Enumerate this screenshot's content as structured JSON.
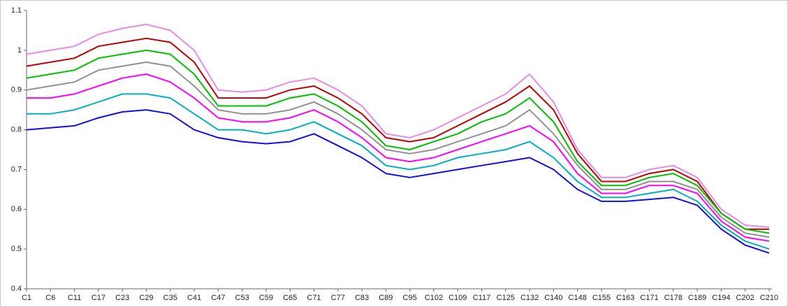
{
  "chart_data": {
    "type": "line",
    "categories": [
      "C1",
      "C6",
      "C11",
      "C17",
      "C23",
      "C29",
      "C35",
      "C41",
      "C47",
      "C53",
      "C59",
      "C65",
      "C71",
      "C77",
      "C83",
      "C89",
      "C95",
      "C102",
      "C109",
      "C117",
      "C125",
      "C132",
      "C140",
      "C148",
      "C155",
      "C163",
      "C171",
      "C178",
      "C189",
      "C194",
      "C202",
      "C210"
    ],
    "ylim": [
      0.4,
      1.1
    ],
    "yticks": [
      0.4,
      0.5,
      0.6,
      0.7,
      0.8,
      0.9,
      {
        "value": 1,
        "label": "1"
      },
      1.1
    ],
    "grid": false,
    "series": [
      {
        "color": "#e68ae6",
        "values": [
          0.99,
          1.0,
          1.01,
          1.04,
          1.055,
          1.065,
          1.05,
          1.0,
          0.9,
          0.895,
          0.9,
          0.92,
          0.93,
          0.9,
          0.86,
          0.79,
          0.78,
          0.8,
          0.83,
          0.86,
          0.89,
          0.94,
          0.87,
          0.75,
          0.68,
          0.68,
          0.7,
          0.71,
          0.68,
          0.6,
          0.56,
          0.555
        ]
      },
      {
        "color": "#c00000",
        "values": [
          0.96,
          0.97,
          0.98,
          1.01,
          1.02,
          1.03,
          1.02,
          0.97,
          0.88,
          0.88,
          0.88,
          0.9,
          0.91,
          0.88,
          0.84,
          0.78,
          0.77,
          0.78,
          0.81,
          0.84,
          0.87,
          0.91,
          0.85,
          0.74,
          0.67,
          0.67,
          0.69,
          0.7,
          0.67,
          0.59,
          0.55,
          0.55
        ]
      },
      {
        "color": "#00c000",
        "values": [
          0.93,
          0.94,
          0.95,
          0.98,
          0.99,
          1.0,
          0.99,
          0.94,
          0.86,
          0.86,
          0.86,
          0.88,
          0.89,
          0.86,
          0.82,
          0.76,
          0.75,
          0.77,
          0.79,
          0.82,
          0.84,
          0.88,
          0.82,
          0.72,
          0.66,
          0.66,
          0.68,
          0.69,
          0.66,
          0.59,
          0.55,
          0.54
        ]
      },
      {
        "color": "#909090",
        "values": [
          0.9,
          0.91,
          0.92,
          0.95,
          0.96,
          0.97,
          0.96,
          0.91,
          0.85,
          0.84,
          0.84,
          0.85,
          0.87,
          0.84,
          0.8,
          0.75,
          0.74,
          0.75,
          0.77,
          0.79,
          0.81,
          0.85,
          0.79,
          0.71,
          0.65,
          0.65,
          0.67,
          0.67,
          0.65,
          0.58,
          0.54,
          0.53
        ]
      },
      {
        "color": "#ff00ff",
        "values": [
          0.88,
          0.88,
          0.89,
          0.91,
          0.93,
          0.94,
          0.92,
          0.88,
          0.83,
          0.82,
          0.82,
          0.83,
          0.85,
          0.82,
          0.78,
          0.73,
          0.72,
          0.73,
          0.75,
          0.77,
          0.79,
          0.81,
          0.77,
          0.69,
          0.64,
          0.64,
          0.66,
          0.66,
          0.64,
          0.57,
          0.53,
          0.52
        ]
      },
      {
        "color": "#00b0c0",
        "values": [
          0.84,
          0.84,
          0.85,
          0.87,
          0.89,
          0.89,
          0.88,
          0.84,
          0.8,
          0.8,
          0.79,
          0.8,
          0.82,
          0.79,
          0.76,
          0.71,
          0.7,
          0.71,
          0.73,
          0.74,
          0.75,
          0.77,
          0.73,
          0.67,
          0.63,
          0.63,
          0.64,
          0.65,
          0.62,
          0.56,
          0.52,
          0.5
        ]
      },
      {
        "color": "#1010e0",
        "values": [
          0.8,
          0.805,
          0.81,
          0.83,
          0.845,
          0.85,
          0.84,
          0.8,
          0.78,
          0.77,
          0.765,
          0.77,
          0.79,
          0.76,
          0.73,
          0.69,
          0.68,
          0.69,
          0.7,
          0.71,
          0.72,
          0.73,
          0.7,
          0.65,
          0.62,
          0.62,
          0.625,
          0.63,
          0.61,
          0.55,
          0.51,
          0.49
        ]
      }
    ]
  }
}
